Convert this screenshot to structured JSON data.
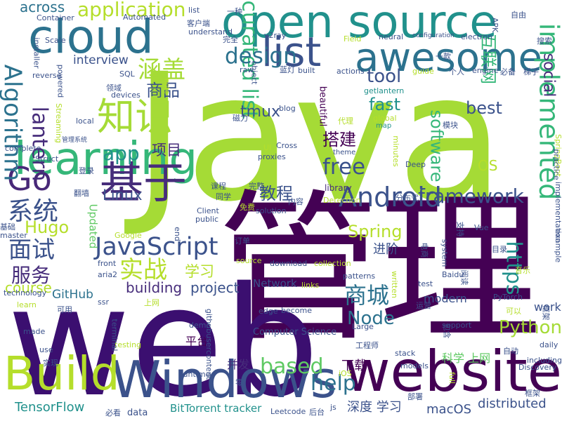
{
  "palette": {
    "yellow_green": "#a5db36",
    "lime": "#b5de2b",
    "green": "#5ec962",
    "teal_green": "#35b779",
    "teal": "#21918c",
    "cyan_blue": "#2c728e",
    "blue": "#3b528b",
    "indigo": "#472d7b",
    "purple": "#440154"
  },
  "words": [
    {
      "text": "Java",
      "color": "#a5db36"
    },
    {
      "text": "管理",
      "color": "#440154"
    },
    {
      "text": "web",
      "color": "#3b0f70"
    },
    {
      "text": "open source",
      "color": "#21918c"
    },
    {
      "text": "cloud",
      "color": "#2c728e"
    },
    {
      "text": "list",
      "color": "#3b528b"
    },
    {
      "text": "awesome",
      "color": "#2c728e"
    },
    {
      "text": "website",
      "color": "#440154"
    },
    {
      "text": "Windows",
      "color": "#3b528b"
    },
    {
      "text": "learning",
      "color": "#35b779"
    },
    {
      "text": "Build",
      "color": "#b5de2b"
    },
    {
      "text": "Go",
      "color": "#482878"
    },
    {
      "text": "基于",
      "color": "#472d7b"
    },
    {
      "text": "知识",
      "color": "#a5db36"
    },
    {
      "text": "Android",
      "color": "#3b528b"
    },
    {
      "text": "JavaScript",
      "color": "#3b528b"
    },
    {
      "text": "curated list",
      "color": "#35b779"
    },
    {
      "text": "implemented",
      "color": "#35b779"
    },
    {
      "text": "design",
      "color": "#2c728e"
    },
    {
      "text": "Algorithm",
      "color": "#2c728e"
    },
    {
      "text": "application",
      "color": "#b5de2b"
    },
    {
      "text": "lantern",
      "color": "#472d7b"
    },
    {
      "text": "free",
      "color": "#3b528b"
    },
    {
      "text": "涵盖",
      "color": "#a5db36"
    },
    {
      "text": "app",
      "color": "#21918c"
    },
    {
      "text": "系统",
      "color": "#3b528b"
    },
    {
      "text": "面试",
      "color": "#3b528b"
    },
    {
      "text": "服务",
      "color": "#472d7b"
    },
    {
      "text": "实战",
      "color": "#b5de2b"
    },
    {
      "text": "商城",
      "color": "#2c728e"
    },
    {
      "text": "based",
      "color": "#5ec962"
    },
    {
      "text": "help",
      "color": "#2c728e"
    },
    {
      "text": "https",
      "color": "#21918c"
    },
    {
      "text": "tool",
      "color": "#3b528b"
    },
    {
      "text": "framework",
      "color": "#3b528b"
    },
    {
      "text": "Python",
      "color": "#a5db36"
    },
    {
      "text": "Node",
      "color": "#2c728e"
    },
    {
      "text": "Spring",
      "color": "#b5de2b"
    },
    {
      "text": "Hugo",
      "color": "#b5de2b"
    },
    {
      "text": "商品",
      "color": "#3b528b"
    },
    {
      "text": "搭建",
      "color": "#440154"
    },
    {
      "text": "教程",
      "color": "#3b528b"
    },
    {
      "text": "fast",
      "color": "#21918c"
    },
    {
      "text": "best",
      "color": "#3b528b"
    },
    {
      "text": "software",
      "color": "#35b779"
    },
    {
      "text": "social",
      "color": "#472d7b"
    },
    {
      "text": "互联网",
      "color": "#35b779"
    },
    {
      "text": "OS",
      "color": "#b5de2b"
    },
    {
      "text": "tmux",
      "color": "#3b528b"
    },
    {
      "text": "Linux",
      "color": "#3b528b"
    },
    {
      "text": "项目",
      "color": "#472d7b"
    },
    {
      "text": "学习",
      "color": "#b5de2b"
    },
    {
      "text": "project",
      "color": "#3b528b"
    },
    {
      "text": "building",
      "color": "#472d7b"
    },
    {
      "text": "course",
      "color": "#b5de2b"
    },
    {
      "text": "across",
      "color": "#2c728e"
    },
    {
      "text": "interview",
      "color": "#3b528b"
    },
    {
      "text": "GitHub",
      "color": "#2c728e"
    },
    {
      "text": "TensorFlow",
      "color": "#21918c"
    },
    {
      "text": "macOS",
      "color": "#3b528b"
    },
    {
      "text": "distributed",
      "color": "#3b528b"
    },
    {
      "text": "深度 学习",
      "color": "#3b528b"
    },
    {
      "text": "下载",
      "color": "#440154"
    },
    {
      "text": "进阶",
      "color": "#3b528b"
    },
    {
      "text": "modern",
      "color": "#3b528b"
    },
    {
      "text": "work",
      "color": "#3b528b"
    },
    {
      "text": "平台",
      "color": "#440154"
    },
    {
      "text": "并发",
      "color": "#472d7b"
    },
    {
      "text": "科学 上网",
      "color": "#5ec962"
    },
    {
      "text": "Network",
      "color": "#3b528b"
    },
    {
      "text": "Computer Science",
      "color": "#3b528b"
    },
    {
      "text": "BitTorrent tracker",
      "color": "#21918c"
    },
    {
      "text": "Updated",
      "color": "#5ec962"
    },
    {
      "text": "beautiful",
      "color": "#440154"
    },
    {
      "text": "data",
      "color": "#3b528b"
    },
    {
      "text": "library",
      "color": "#472d7b"
    },
    {
      "text": "Deep",
      "color": "#3b528b"
    },
    {
      "text": "blog",
      "color": "#3b528b"
    },
    {
      "text": "SQL",
      "color": "#3b528b"
    },
    {
      "text": "devices",
      "color": "#3b528b"
    },
    {
      "text": "local",
      "color": "#3b528b"
    },
    {
      "text": "complete",
      "color": "#3b528b"
    },
    {
      "text": "Struct",
      "color": "#3b528b"
    },
    {
      "text": "Cross",
      "color": "#3b528b"
    },
    {
      "text": "proxies",
      "color": "#3b528b"
    },
    {
      "text": "theme",
      "color": "#3b528b"
    },
    {
      "text": "UI",
      "color": "#b5de2b"
    },
    {
      "text": "global",
      "color": "#b5de2b"
    },
    {
      "text": "map",
      "color": "#21918c"
    },
    {
      "text": "模块",
      "color": "#3b528b"
    },
    {
      "text": "代理",
      "color": "#b5de2b"
    },
    {
      "text": "磁力",
      "color": "#3b528b"
    },
    {
      "text": "object",
      "color": "#3b528b"
    },
    {
      "text": "raw",
      "color": "#3b528b"
    },
    {
      "text": "蓝灯",
      "color": "#3b528b"
    },
    {
      "text": "built",
      "color": "#3b528b"
    },
    {
      "text": "actions",
      "color": "#3b528b"
    },
    {
      "text": "guide",
      "color": "#b5de2b"
    },
    {
      "text": "个人",
      "color": "#3b528b"
    },
    {
      "text": "engine",
      "color": "#3b528b"
    },
    {
      "text": "必备",
      "color": "#3b528b"
    },
    {
      "text": "梯子",
      "color": "#3b528b"
    },
    {
      "text": "getlantern",
      "color": "#21918c"
    },
    {
      "text": "neural",
      "color": "#3b528b"
    },
    {
      "text": "configuration",
      "color": "#3b528b"
    },
    {
      "text": "electron",
      "color": "#3b528b"
    },
    {
      "text": "APK",
      "color": "#3b528b"
    },
    {
      "text": "自由",
      "color": "#3b528b"
    },
    {
      "text": "搜索",
      "color": "#3b528b"
    },
    {
      "text": "Field",
      "color": "#b5de2b"
    },
    {
      "text": "v2ray",
      "color": "#3b528b"
    },
    {
      "text": "完全",
      "color": "#3b528b"
    },
    {
      "text": "一种",
      "color": "#3b528b"
    },
    {
      "text": "Automated",
      "color": "#3b528b"
    },
    {
      "text": "Container",
      "color": "#3b528b"
    },
    {
      "text": "Scale",
      "color": "#3b528b"
    },
    {
      "text": "installer",
      "color": "#3b528b"
    },
    {
      "text": "reverse",
      "color": "#3b528b"
    },
    {
      "text": "powered",
      "color": "#3b528b"
    },
    {
      "text": "领域",
      "color": "#3b528b"
    },
    {
      "text": "note",
      "color": "#b5de2b"
    },
    {
      "text": "客户端",
      "color": "#3b528b"
    },
    {
      "text": "understand",
      "color": "#3b528b"
    },
    {
      "text": "list",
      "color": "#3b528b"
    },
    {
      "text": "Streaming",
      "color": "#b5de2b"
    },
    {
      "text": "管理系统",
      "color": "#3b528b"
    },
    {
      "text": "登录",
      "color": "#3b528b"
    },
    {
      "text": "翻墙",
      "color": "#3b528b"
    },
    {
      "text": "课程",
      "color": "#3b528b"
    },
    {
      "text": "完整",
      "color": "#3b528b"
    },
    {
      "text": "同学",
      "color": "#3b528b"
    },
    {
      "text": "Client",
      "color": "#3b528b"
    },
    {
      "text": "public",
      "color": "#3b528b"
    },
    {
      "text": "免费",
      "color": "#b5de2b"
    },
    {
      "text": "内容",
      "color": "#3b528b"
    },
    {
      "text": "solution",
      "color": "#3b528b"
    },
    {
      "text": "Detection",
      "color": "#b5de2b"
    },
    {
      "text": "分布式",
      "color": "#3b528b"
    },
    {
      "text": "基础",
      "color": "#3b528b"
    },
    {
      "text": "master",
      "color": "#3b528b"
    },
    {
      "text": "Google",
      "color": "#b5de2b"
    },
    {
      "text": "end",
      "color": "#3b528b"
    },
    {
      "text": "订单",
      "color": "#3b528b"
    },
    {
      "text": "front",
      "color": "#3b528b"
    },
    {
      "text": "aria2",
      "color": "#3b528b"
    },
    {
      "text": "source",
      "color": "#b5de2b"
    },
    {
      "text": "download",
      "color": "#3b528b"
    },
    {
      "text": "collection",
      "color": "#b5de2b"
    },
    {
      "text": "patterns",
      "color": "#3b528b"
    },
    {
      "text": "links",
      "color": "#b5de2b"
    },
    {
      "text": "written",
      "color": "#b5de2b"
    },
    {
      "text": "电商",
      "color": "#3b528b"
    },
    {
      "text": "system",
      "color": "#3b528b"
    },
    {
      "text": "支持",
      "color": "#3b528b"
    },
    {
      "text": "Vue",
      "color": "#3b528b"
    },
    {
      "text": "Baidu",
      "color": "#3b528b"
    },
    {
      "text": "test",
      "color": "#3b528b"
    },
    {
      "text": "运营",
      "color": "#3b528b"
    },
    {
      "text": "PyTorch",
      "color": "#3b528b"
    },
    {
      "text": "框架",
      "color": "#3b528b"
    },
    {
      "text": "technology",
      "color": "#3b528b"
    },
    {
      "text": "learn",
      "color": "#b5de2b"
    },
    {
      "text": "可用",
      "color": "#3b528b"
    },
    {
      "text": "ssr",
      "color": "#3b528b"
    },
    {
      "text": "上网",
      "color": "#b5de2b"
    },
    {
      "text": "edge",
      "color": "#3b528b"
    },
    {
      "text": "become",
      "color": "#3b528b"
    },
    {
      "text": "made",
      "color": "#3b528b"
    },
    {
      "text": "testing",
      "color": "#b5de2b"
    },
    {
      "text": "demo",
      "color": "#3b528b"
    },
    {
      "text": "包含",
      "color": "#3b528b"
    },
    {
      "text": "support",
      "color": "#3b528b"
    },
    {
      "text": "Large",
      "color": "#3b528b"
    },
    {
      "text": "daily",
      "color": "#3b528b"
    },
    {
      "text": "use",
      "color": "#3b528b"
    },
    {
      "text": "githubusercontent",
      "color": "#3b528b"
    },
    {
      "text": "工程师",
      "color": "#3b528b"
    },
    {
      "text": "stack",
      "color": "#3b528b"
    },
    {
      "text": "including",
      "color": "#3b528b"
    },
    {
      "text": "实现",
      "color": "#3b528b"
    },
    {
      "text": "runtime",
      "color": "#3b528b"
    },
    {
      "text": "iOS",
      "color": "#b5de2b"
    },
    {
      "text": "models",
      "color": "#3b528b"
    },
    {
      "text": "Discovery",
      "color": "#3b528b"
    },
    {
      "text": "terminal",
      "color": "#3b528b"
    },
    {
      "text": "full",
      "color": "#b5de2b"
    },
    {
      "text": "js",
      "color": "#3b528b"
    },
    {
      "text": "Leetcode",
      "color": "#3b528b"
    },
    {
      "text": "后台",
      "color": "#3b528b"
    },
    {
      "text": "必看",
      "color": "#3b528b"
    },
    {
      "text": "SpringBoot",
      "color": "#b5de2b"
    },
    {
      "text": "practice",
      "color": "#3b528b"
    },
    {
      "text": "implementation",
      "color": "#3b528b"
    },
    {
      "text": "example",
      "color": "#3b528b"
    },
    {
      "text": "阅读",
      "color": "#3b528b"
    },
    {
      "text": "可以",
      "color": "#b5de2b"
    },
    {
      "text": "minutes",
      "color": "#b5de2b"
    },
    {
      "text": "零",
      "color": "#3b528b"
    },
    {
      "text": "部署",
      "color": "#3b528b"
    },
    {
      "text": "一款",
      "color": "#3b528b"
    },
    {
      "text": "目录",
      "color": "#3b528b"
    },
    {
      "text": "音乐",
      "color": "#b5de2b"
    },
    {
      "text": "框架",
      "color": "#3b528b"
    },
    {
      "text": "自动",
      "color": "#3b528b"
    }
  ]
}
